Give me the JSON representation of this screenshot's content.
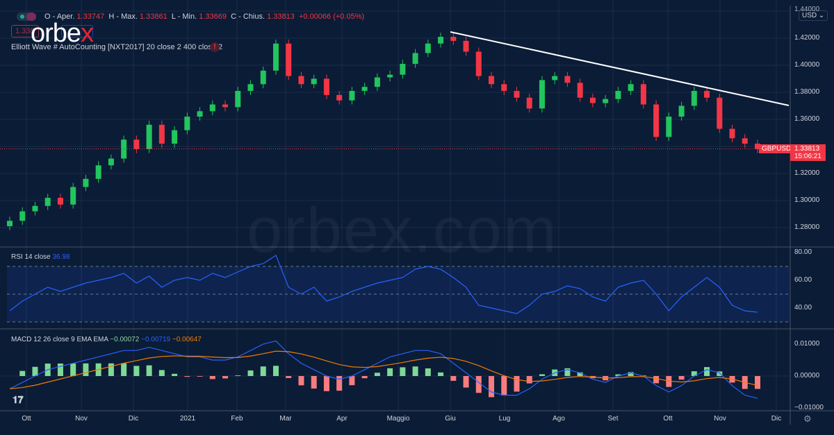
{
  "header": {
    "ohlc": [
      {
        "label": "O - Aper.",
        "value": "1.33747"
      },
      {
        "label": "H - Max.",
        "value": "1.33861"
      },
      {
        "label": "L - Min.",
        "value": "1.33669"
      },
      {
        "label": "C - Chius.",
        "value": "1.33813"
      }
    ],
    "change": "+0.00066 (+0.05%)",
    "sell_price": "1.338",
    "indicator": "Elliott Wave # AutoCounting [NXT2017] 20 close 2 400 close 2",
    "logo": "orbex"
  },
  "watermark": "orbex.com",
  "currency_button": "USD",
  "symbol": "GBPUSD",
  "last_price": "1.33813",
  "countdown": "15:06:21",
  "colors": {
    "up": "#26a69a",
    "up_bar": "#22c55e",
    "down": "#f23645",
    "rsi": "#2962ff",
    "macd": "#2962ff",
    "signal": "#f57c00",
    "trendline": "#ffffff",
    "background": "#0b1c36"
  },
  "rsi": {
    "label": "RSI 14 close",
    "value": "36.98"
  },
  "macd": {
    "label": "MACD 12 26 close 9 EMA EMA",
    "hist": "−0.00072",
    "macd": "−0.00719",
    "signal": "−0.00647"
  },
  "chart_data": {
    "type": "candlestick",
    "symbol": "GBPUSD",
    "price_ticks": [
      "1.44000",
      "1.42000",
      "1.40000",
      "1.38000",
      "1.36000",
      "1.34000",
      "1.32000",
      "1.30000",
      "1.28000"
    ],
    "rsi_ticks": [
      "80.00",
      "60.00",
      "40.00"
    ],
    "macd_ticks": [
      "0.01000",
      "0.00000",
      "−0.01000"
    ],
    "time_ticks": [
      "Ott",
      "Nov",
      "Dic",
      "2021",
      "Feb",
      "Mar",
      "Apr",
      "Maggio",
      "Giu",
      "Lug",
      "Ago",
      "Set",
      "Ott",
      "Nov",
      "Dic"
    ],
    "ylim": [
      1.27,
      1.44
    ],
    "closes": [
      1.285,
      1.292,
      1.296,
      1.302,
      1.297,
      1.31,
      1.316,
      1.326,
      1.331,
      1.345,
      1.338,
      1.356,
      1.342,
      1.352,
      1.362,
      1.366,
      1.371,
      1.369,
      1.381,
      1.386,
      1.396,
      1.416,
      1.392,
      1.386,
      1.39,
      1.378,
      1.374,
      1.381,
      1.384,
      1.391,
      1.393,
      1.401,
      1.409,
      1.416,
      1.421,
      1.418,
      1.41,
      1.392,
      1.386,
      1.381,
      1.376,
      1.368,
      1.389,
      1.392,
      1.387,
      1.376,
      1.372,
      1.375,
      1.381,
      1.386,
      1.371,
      1.347,
      1.362,
      1.37,
      1.381,
      1.376,
      1.353,
      1.346,
      1.342,
      1.338
    ],
    "rsi_values": [
      38,
      45,
      50,
      55,
      52,
      55,
      58,
      60,
      62,
      65,
      58,
      63,
      55,
      60,
      62,
      60,
      65,
      62,
      66,
      70,
      72,
      78,
      55,
      50,
      55,
      45,
      48,
      52,
      55,
      58,
      60,
      62,
      68,
      70,
      68,
      62,
      55,
      42,
      40,
      38,
      36,
      42,
      50,
      52,
      56,
      54,
      48,
      45,
      55,
      58,
      60,
      50,
      38,
      48,
      55,
      62,
      55,
      42,
      38,
      37
    ],
    "macd_values": [
      -0.004,
      -0.002,
      0,
      0.002,
      0.003,
      0.004,
      0.005,
      0.006,
      0.007,
      0.008,
      0.008,
      0.009,
      0.008,
      0.007,
      0.006,
      0.006,
      0.005,
      0.005,
      0.006,
      0.008,
      0.01,
      0.011,
      0.007,
      0.004,
      0.002,
      0.0,
      -0.001,
      0.0,
      0.002,
      0.004,
      0.006,
      0.007,
      0.008,
      0.008,
      0.007,
      0.004,
      0.001,
      -0.002,
      -0.005,
      -0.006,
      -0.006,
      -0.004,
      -0.001,
      0.001,
      0.002,
      0.001,
      -0.001,
      -0.002,
      0,
      0.001,
      0,
      -0.003,
      -0.005,
      -0.003,
      0,
      0.002,
      0.001,
      -0.003,
      -0.006,
      -0.007
    ],
    "trendline": {
      "from": {
        "time": "Giu",
        "price": 1.425
      },
      "to": {
        "time": "Nov end",
        "price": 1.371
      }
    },
    "rsi_bands": [
      70,
      30
    ]
  }
}
